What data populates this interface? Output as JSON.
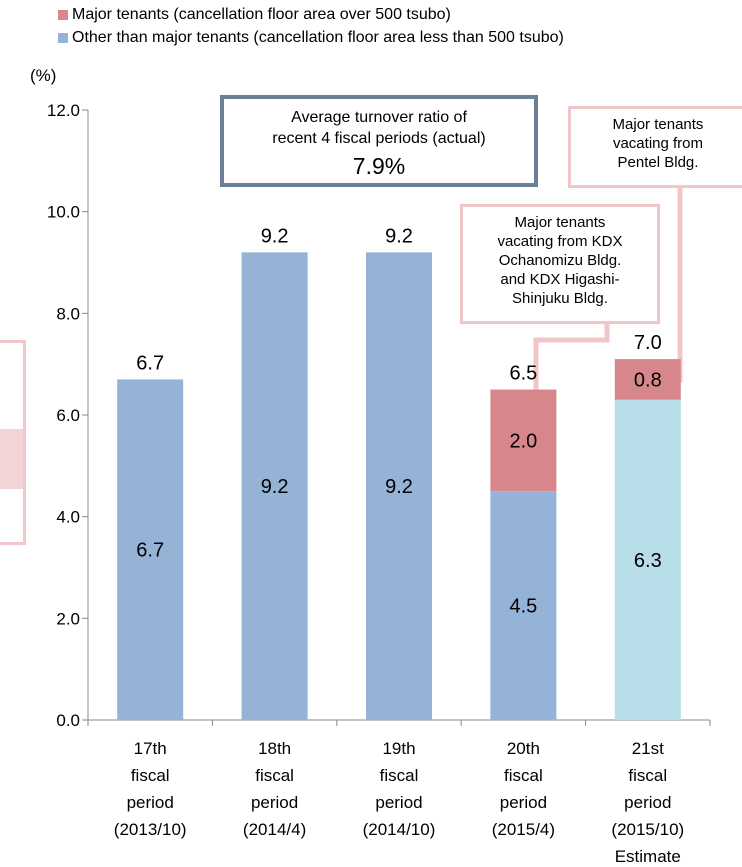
{
  "legend": {
    "major": "Major tenants (cancellation floor area over 500 tsubo)",
    "other": "Other than major tenants (cancellation floor area less than 500 tsubo)"
  },
  "colors": {
    "major": "#d7878b",
    "other": "#95b3d7",
    "estimate": "#b7dde8",
    "callout_border": "#f0c6c8",
    "avg_border": "#6b7f96"
  },
  "unit_label": "(%)",
  "average_box": {
    "line1": "Average turnover ratio of",
    "line2": "recent 4 fiscal periods (actual)",
    "value": "7.9%"
  },
  "callouts": {
    "pentel": [
      "Major tenants",
      "vacating from",
      "Pentel Bldg."
    ],
    "kdx": [
      "Major tenants",
      "vacating from KDX",
      "Ochanomizu Bldg.",
      "and KDX Higashi-",
      "Shinjuku Bldg."
    ]
  },
  "chart_data": {
    "type": "bar",
    "stacked": true,
    "ylim": [
      0,
      12
    ],
    "yticks": [
      "0.0",
      "2.0",
      "4.0",
      "6.0",
      "8.0",
      "10.0",
      "12.0"
    ],
    "categories": [
      [
        "17th",
        "fiscal",
        "period",
        "(2013/10)"
      ],
      [
        "18th",
        "fiscal",
        "period",
        "(2014/4)"
      ],
      [
        "19th",
        "fiscal",
        "period",
        "(2014/10)"
      ],
      [
        "20th",
        "fiscal",
        "period",
        "(2015/4)"
      ],
      [
        "21st",
        "fiscal",
        "period",
        "(2015/10)",
        "Estimate"
      ]
    ],
    "series": [
      {
        "name": "Other than major tenants (cancellation floor area less than 500 tsubo)",
        "values": [
          6.7,
          9.2,
          9.2,
          4.5,
          6.3
        ],
        "labels": [
          "6.7",
          "9.2",
          "9.2",
          "4.5",
          "6.3"
        ]
      },
      {
        "name": "Major tenants (cancellation floor area over 500 tsubo)",
        "values": [
          0,
          0,
          0,
          2.0,
          0.8
        ],
        "labels": [
          "",
          "",
          "",
          "2.0",
          "0.8"
        ]
      }
    ],
    "totals": [
      "6.7",
      "9.2",
      "9.2",
      "6.5",
      "7.0"
    ]
  }
}
